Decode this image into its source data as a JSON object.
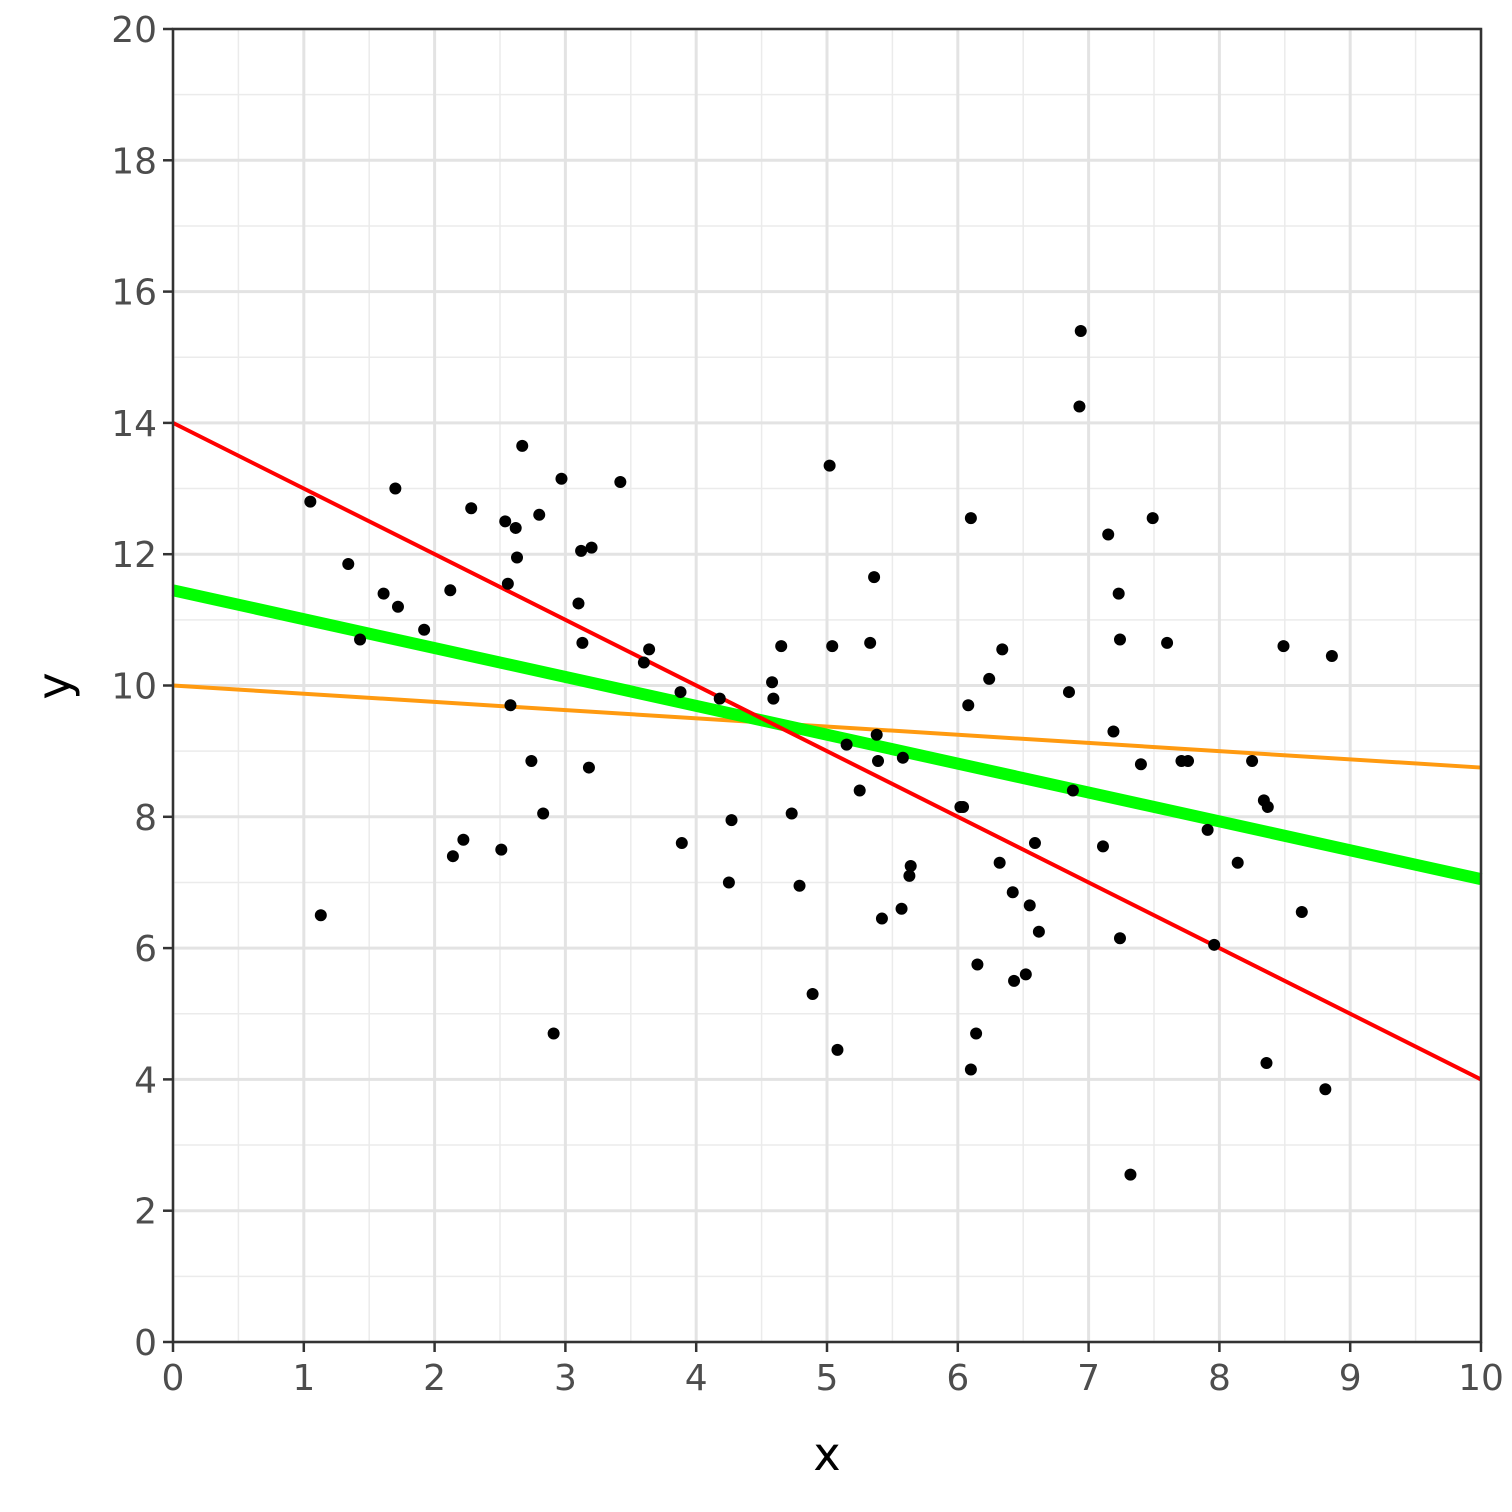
{
  "chart_data": {
    "type": "scatter",
    "title": "",
    "xlabel": "x",
    "ylabel": "y",
    "xlim": [
      0,
      10
    ],
    "ylim": [
      0,
      20
    ],
    "x_ticks": [
      0,
      1,
      2,
      3,
      4,
      5,
      6,
      7,
      8,
      9,
      10
    ],
    "y_ticks": [
      0,
      2,
      4,
      6,
      8,
      10,
      12,
      14,
      16,
      18,
      20
    ],
    "grid": true,
    "legend": "none",
    "points": {
      "color": "#000000",
      "x": [
        1.05,
        1.13,
        1.34,
        1.43,
        1.61,
        1.7,
        1.72,
        1.92,
        2.12,
        2.14,
        2.22,
        2.28,
        2.51,
        2.54,
        2.56,
        2.58,
        2.62,
        2.63,
        2.67,
        2.74,
        2.8,
        2.83,
        2.91,
        2.97,
        3.1,
        3.12,
        3.13,
        3.18,
        3.2,
        3.42,
        3.6,
        3.64,
        3.88,
        3.89,
        4.18,
        4.25,
        4.27,
        4.58,
        4.59,
        4.65,
        4.73,
        4.79,
        4.89,
        5.02,
        5.04,
        5.08,
        5.15,
        5.25,
        5.33,
        5.36,
        5.38,
        5.39,
        5.42,
        5.57,
        5.58,
        5.63,
        5.64,
        6.02,
        6.04,
        6.08,
        6.1,
        6.1,
        6.14,
        6.15,
        6.24,
        6.32,
        6.34,
        6.42,
        6.43,
        6.52,
        6.55,
        6.59,
        6.62,
        6.85,
        6.88,
        6.93,
        6.94,
        7.11,
        7.15,
        7.19,
        7.23,
        7.24,
        7.24,
        7.32,
        7.4,
        7.49,
        7.6,
        7.71,
        7.76,
        7.91,
        7.96,
        8.14,
        8.25,
        8.34,
        8.36,
        8.37,
        8.49,
        8.63,
        8.81,
        8.86
      ],
      "y": [
        12.8,
        6.5,
        11.85,
        10.7,
        11.4,
        13.0,
        11.2,
        10.85,
        11.45,
        7.4,
        7.65,
        12.7,
        7.5,
        12.5,
        11.55,
        9.7,
        12.4,
        11.95,
        13.65,
        8.85,
        12.6,
        8.05,
        4.7,
        13.15,
        11.25,
        12.05,
        10.65,
        8.75,
        12.1,
        13.1,
        10.35,
        10.55,
        9.9,
        7.6,
        9.8,
        7.0,
        7.95,
        10.05,
        9.8,
        10.6,
        8.05,
        6.95,
        5.3,
        13.35,
        10.6,
        4.45,
        9.1,
        8.4,
        10.65,
        11.65,
        9.25,
        8.85,
        6.45,
        6.6,
        8.9,
        7.1,
        7.25,
        8.15,
        8.15,
        9.7,
        12.55,
        4.15,
        4.7,
        5.75,
        10.1,
        7.3,
        10.55,
        6.85,
        5.5,
        5.6,
        6.65,
        7.6,
        6.25,
        9.9,
        8.4,
        14.25,
        15.4,
        7.55,
        12.3,
        9.3,
        11.4,
        10.7,
        6.15,
        2.55,
        8.8,
        12.55,
        10.65,
        8.85,
        8.85,
        7.8,
        6.05,
        7.3,
        8.85,
        8.25,
        4.25,
        8.15,
        10.6,
        6.55,
        3.85,
        10.45
      ]
    },
    "lines": [
      {
        "color": "#ff9a10",
        "intercept": 10.0,
        "slope": -0.125
      },
      {
        "color": "#00ff00",
        "intercept": 11.45,
        "slope": -0.44
      },
      {
        "color": "#ff0000",
        "intercept": 14.0,
        "slope": -1.0
      }
    ]
  }
}
